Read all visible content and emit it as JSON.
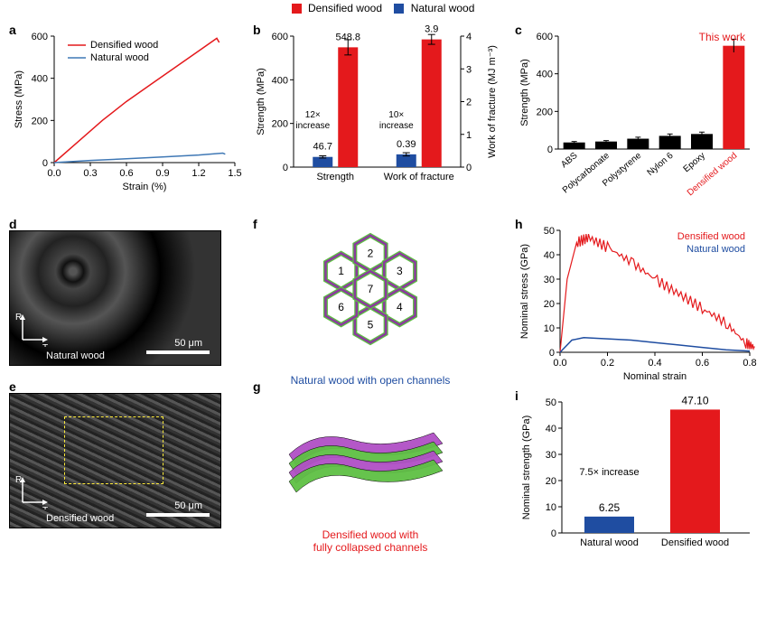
{
  "topLegend": {
    "a": {
      "label": "Densified wood",
      "color": "#e4191c"
    },
    "b": {
      "label": "Natural wood",
      "color": "#1f4da1"
    }
  },
  "a": {
    "label": "a",
    "ylabel": "Stress (MPa)",
    "xlabel": "Strain (%)",
    "xlim": [
      0.0,
      1.5
    ],
    "ylim": [
      0,
      600
    ],
    "xticks": [
      0.0,
      0.3,
      0.6,
      0.9,
      1.2,
      1.5
    ],
    "yticks": [
      0,
      200,
      400,
      600
    ],
    "series": {
      "densified": {
        "color": "#e4191c",
        "label": "Densified wood",
        "points": [
          [
            0,
            0
          ],
          [
            0.2,
            100
          ],
          [
            0.4,
            200
          ],
          [
            0.6,
            290
          ],
          [
            0.8,
            370
          ],
          [
            1.0,
            450
          ],
          [
            1.2,
            530
          ],
          [
            1.35,
            590
          ],
          [
            1.37,
            570
          ]
        ]
      },
      "natural": {
        "color": "#3f78b5",
        "label": "Natural wood",
        "points": [
          [
            0,
            0
          ],
          [
            0.3,
            10
          ],
          [
            0.6,
            18
          ],
          [
            0.9,
            27
          ],
          [
            1.2,
            36
          ],
          [
            1.4,
            45
          ],
          [
            1.42,
            40
          ]
        ]
      }
    },
    "legend": [
      "Densified wood",
      "Natural wood"
    ]
  },
  "b": {
    "label": "b",
    "ylabel_left": "Strength (MPa)",
    "ylabel_right": "Work of fracture (MJ m⁻³)",
    "ylim_left": [
      0,
      600
    ],
    "ylim_right": [
      0,
      4
    ],
    "yticks_left": [
      0,
      200,
      400,
      600
    ],
    "yticks_right": [
      0,
      1,
      2,
      3,
      4
    ],
    "groups": [
      "Strength",
      "Work of fracture"
    ],
    "bars": [
      {
        "group": "Strength",
        "color": "#1f4da1",
        "value": 46.7,
        "err": 5,
        "label": "46.7",
        "scale": "left"
      },
      {
        "group": "Strength",
        "color": "#e4191c",
        "value": 548.8,
        "err": 35,
        "label": "548.8",
        "scale": "left"
      },
      {
        "group": "Work of fracture",
        "color": "#1f4da1",
        "value": 0.39,
        "err": 0.05,
        "label": "0.39",
        "scale": "right"
      },
      {
        "group": "Work of fracture",
        "color": "#e4191c",
        "value": 3.9,
        "err": 0.15,
        "label": "3.9",
        "scale": "right"
      }
    ],
    "annotations": [
      "12×\nincrease",
      "10×\nincrease"
    ]
  },
  "c": {
    "label": "c",
    "ylabel": "Strength (MPa)",
    "ylim": [
      0,
      600
    ],
    "yticks": [
      0,
      200,
      400,
      600
    ],
    "categories": [
      "ABS",
      "Polycarbonate",
      "Polystyrene",
      "Nylon 6",
      "Epoxy",
      "Densified wood"
    ],
    "values": [
      35,
      40,
      55,
      70,
      80,
      548.8
    ],
    "errors": [
      5,
      5,
      8,
      10,
      10,
      35
    ],
    "colors": [
      "#000000",
      "#000000",
      "#000000",
      "#000000",
      "#000000",
      "#e4191c"
    ],
    "annotation": "This work",
    "annotation_color": "#e4191c",
    "last_label_color": "#e4191c"
  },
  "d": {
    "label": "d",
    "caption": "Natural wood",
    "axes": {
      "v": "R",
      "h": "T"
    },
    "scale": "50 μm"
  },
  "e": {
    "label": "e",
    "caption": "Densified wood",
    "axes": {
      "v": "R",
      "h": "T"
    },
    "scale": "50 μm"
  },
  "f": {
    "label": "f",
    "caption": "Natural wood with open channels",
    "caption_color": "#1f4da1",
    "cell_numbers": [
      1,
      2,
      3,
      4,
      5,
      6,
      7
    ],
    "colors": {
      "outer": "#8b3a9e",
      "inner": "#5ec043"
    }
  },
  "g": {
    "label": "g",
    "caption": "Densified wood with\nfully collapsed channels",
    "caption_color": "#e4191c",
    "colors": {
      "c1": "#b04fc5",
      "c2": "#5ec043"
    }
  },
  "h": {
    "label": "h",
    "ylabel": "Nominal stress (GPa)",
    "xlabel": "Nominal strain",
    "xlim": [
      0.0,
      0.8
    ],
    "ylim": [
      0,
      50
    ],
    "xticks": [
      0.0,
      0.2,
      0.4,
      0.6,
      0.8
    ],
    "yticks": [
      0,
      10,
      20,
      30,
      40,
      50
    ],
    "series": {
      "densified": {
        "color": "#e4191c",
        "label": "Densified wood",
        "points": [
          [
            0,
            0
          ],
          [
            0.03,
            30
          ],
          [
            0.07,
            45
          ],
          [
            0.12,
            47
          ],
          [
            0.2,
            43
          ],
          [
            0.3,
            37
          ],
          [
            0.4,
            30
          ],
          [
            0.5,
            24
          ],
          [
            0.6,
            18
          ],
          [
            0.7,
            12
          ],
          [
            0.78,
            4
          ],
          [
            0.82,
            2
          ]
        ]
      },
      "natural": {
        "color": "#1f4da1",
        "label": "Natural wood",
        "points": [
          [
            0,
            0
          ],
          [
            0.05,
            5
          ],
          [
            0.1,
            6
          ],
          [
            0.2,
            5.5
          ],
          [
            0.3,
            5
          ],
          [
            0.4,
            4
          ],
          [
            0.5,
            3
          ],
          [
            0.6,
            2
          ],
          [
            0.7,
            1
          ],
          [
            0.8,
            0.5
          ]
        ]
      }
    }
  },
  "i": {
    "label": "i",
    "ylabel": "Nominal strength (GPa)",
    "ylim": [
      0,
      50
    ],
    "yticks": [
      0,
      10,
      20,
      30,
      40,
      50
    ],
    "categories": [
      "Natural wood",
      "Densified wood"
    ],
    "values": [
      6.25,
      47.1
    ],
    "labels": [
      "6.25",
      "47.10"
    ],
    "colors": [
      "#1f4da1",
      "#e4191c"
    ],
    "annotation": "7.5× increase"
  }
}
